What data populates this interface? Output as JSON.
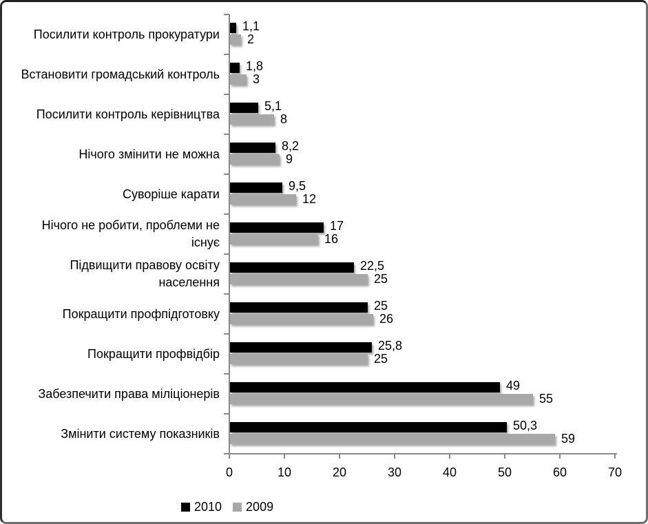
{
  "chart_data": {
    "type": "bar",
    "orientation": "horizontal",
    "title": "",
    "xlabel": "",
    "ylabel": "",
    "xlim": [
      0,
      70
    ],
    "x_ticks": [
      0,
      10,
      20,
      30,
      40,
      50,
      60,
      70
    ],
    "grid": false,
    "legend_position": "bottom",
    "categories": [
      "Посилити контроль прокуратури",
      "Встановити громадський контроль",
      "Посилити контроль керівництва",
      "Нічого змінити не можна",
      "Суворіше карати",
      "Нічого не робити, проблеми не існує",
      "Підвищити правову освіту населення",
      "Покращити профпідготовку",
      "Покращити профвідбір",
      "Забезпечити права міліціонерів",
      "Змінити систему показників"
    ],
    "series": [
      {
        "name": "2010",
        "color": "#000000",
        "values": [
          1.1,
          1.8,
          5.1,
          8.2,
          9.5,
          17,
          22.5,
          25,
          25.8,
          49,
          50.3
        ],
        "value_labels": [
          "1,1",
          "1,8",
          "5,1",
          "8,2",
          "9,5",
          "17",
          "22,5",
          "25",
          "25,8",
          "49",
          "50,3"
        ]
      },
      {
        "name": "2009",
        "color": "#a8a8a8",
        "values": [
          2,
          3,
          8,
          9,
          12,
          16,
          25,
          26,
          25,
          55,
          59
        ],
        "value_labels": [
          "2",
          "3",
          "8",
          "9",
          "12",
          "16",
          "25",
          "26",
          "25",
          "55",
          "59"
        ]
      }
    ],
    "colors": {
      "axis": "#8a8a8a",
      "text": "#000000",
      "background": "#ffffff"
    }
  }
}
